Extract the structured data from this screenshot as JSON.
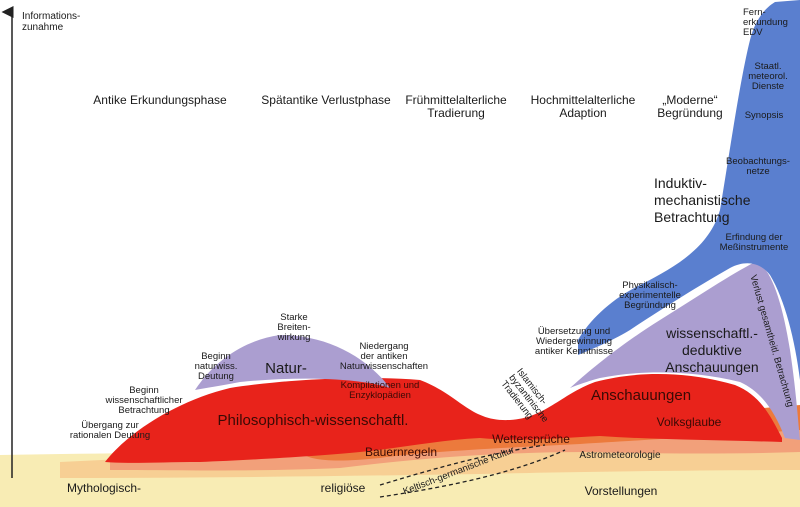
{
  "axis": {
    "y_label_line1": "Informations-",
    "y_label_line2": "zunahme"
  },
  "phases": [
    {
      "line1": "Antike Erkundungsphase",
      "line2": ""
    },
    {
      "line1": "Spätantike Verlustphase",
      "line2": ""
    },
    {
      "line1": "Frühmittelalterliche",
      "line2": "Tradierung"
    },
    {
      "line1": "Hochmittelalterliche",
      "line2": "Adaption"
    },
    {
      "line1": "„Moderne“",
      "line2": "Begründung"
    }
  ],
  "blue_labels": {
    "fernerkundung": [
      "Fern-",
      "erkundung",
      "EDV"
    ],
    "staatl": [
      "Staatl.",
      "meteorol.",
      "Dienste"
    ],
    "synopsis": "Synopsis",
    "beobachtungsnetze": [
      "Beobachtungs-",
      "netze"
    ],
    "induktiv": [
      "Induktiv-",
      "mechanistische",
      "Betrachtung"
    ],
    "messinstrumente": [
      "Erfindung der",
      "Meßinstrumente"
    ],
    "physikalisch": [
      "Physikalisch-",
      "experimentelle",
      "Begründung"
    ]
  },
  "purple_labels": {
    "starke": [
      "Starke",
      "Breiten-",
      "wirkung"
    ],
    "beginn_natur": [
      "Beginn",
      "naturwiss.",
      "Deutung"
    ],
    "natur": "Natur-",
    "niedergang": [
      "Niedergang",
      "der antiken",
      "Naturwissenschaften"
    ],
    "uebersetzung": [
      "Übersetzung und",
      "Wiedergewinnung",
      "antiker Kenntnisse"
    ],
    "wissenschaftl": [
      "wissenschaftl.-",
      "deduktive",
      "Anschauungen"
    ],
    "verlust": "Verlust gesamtheitl. Betrachtung"
  },
  "red_labels": {
    "beginn_wiss": [
      "Beginn",
      "wissenschaftlicher",
      "Betrachtung"
    ],
    "uebergang": [
      "Übergang zur",
      "rationalen Deutung"
    ],
    "kompilationen": [
      "Kompilationen und",
      "Enzyklopädien"
    ],
    "islamisch": [
      "Islamisch-",
      "byzantinische",
      "Tradierung"
    ],
    "philosophisch": "Philosophisch-wissenschaftl.",
    "anschauungen": "Anschauungen",
    "volksglaube": "Volksglaube"
  },
  "folk_labels": {
    "bauernregeln": "Bauernregeln",
    "wettersprueche": "Wettersprüche",
    "astrometeorologie": "Astrometeorologie",
    "keltisch": "Keltisch-germanische Kultur"
  },
  "base_labels": {
    "mythologisch": "Mythologisch-",
    "religioese": "religiöse",
    "vorstellungen": "Vorstellungen"
  },
  "colors": {
    "base_yellow": "#f8ecb4",
    "light_orange": "#f7cf94",
    "salmon": "#f2a07a",
    "deep_orange": "#ec7a3c",
    "red": "#e8231b",
    "purple": "#ab9ed0",
    "blue": "#5a7fcf",
    "axis": "#222222"
  }
}
